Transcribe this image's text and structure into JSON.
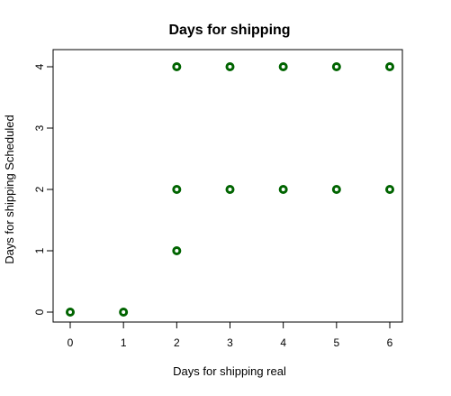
{
  "chart_data": {
    "type": "scatter",
    "title": "Days for shipping",
    "xlabel": "Days for shipping real",
    "ylabel": "Days for shipping Scheduled",
    "xlim": [
      0,
      6
    ],
    "ylim": [
      0,
      4
    ],
    "xticks": [
      "0",
      "1",
      "2",
      "3",
      "4",
      "5",
      "6"
    ],
    "yticks": [
      "0",
      "1",
      "2",
      "3",
      "4"
    ],
    "grid": false,
    "legend": "none",
    "point_color": "#006400",
    "points": [
      {
        "x": 0,
        "y": 0
      },
      {
        "x": 1,
        "y": 0
      },
      {
        "x": 2,
        "y": 1
      },
      {
        "x": 2,
        "y": 2
      },
      {
        "x": 2,
        "y": 4
      },
      {
        "x": 3,
        "y": 2
      },
      {
        "x": 3,
        "y": 4
      },
      {
        "x": 4,
        "y": 2
      },
      {
        "x": 4,
        "y": 4
      },
      {
        "x": 5,
        "y": 2
      },
      {
        "x": 5,
        "y": 4
      },
      {
        "x": 6,
        "y": 2
      },
      {
        "x": 6,
        "y": 4
      }
    ]
  }
}
